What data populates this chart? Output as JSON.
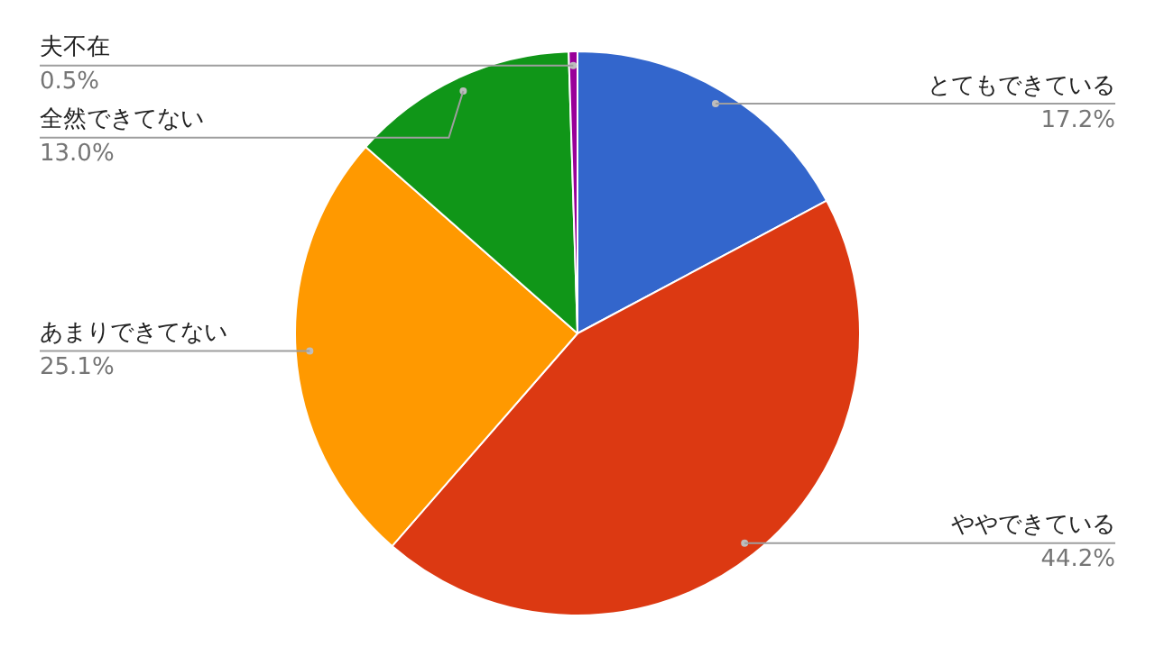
{
  "chart_data": {
    "type": "pie",
    "categories": [
      "とてもできている",
      "ややできている",
      "あまりできてない",
      "全然できてない",
      "夫不在"
    ],
    "values": [
      17.2,
      44.2,
      25.1,
      13.0,
      0.5
    ],
    "colors": [
      "#3366cc",
      "#dc3912",
      "#ff9900",
      "#109618",
      "#990099"
    ],
    "value_labels": [
      "17.2%",
      "44.2%",
      "25.1%",
      "13.0%",
      "0.5%"
    ]
  }
}
